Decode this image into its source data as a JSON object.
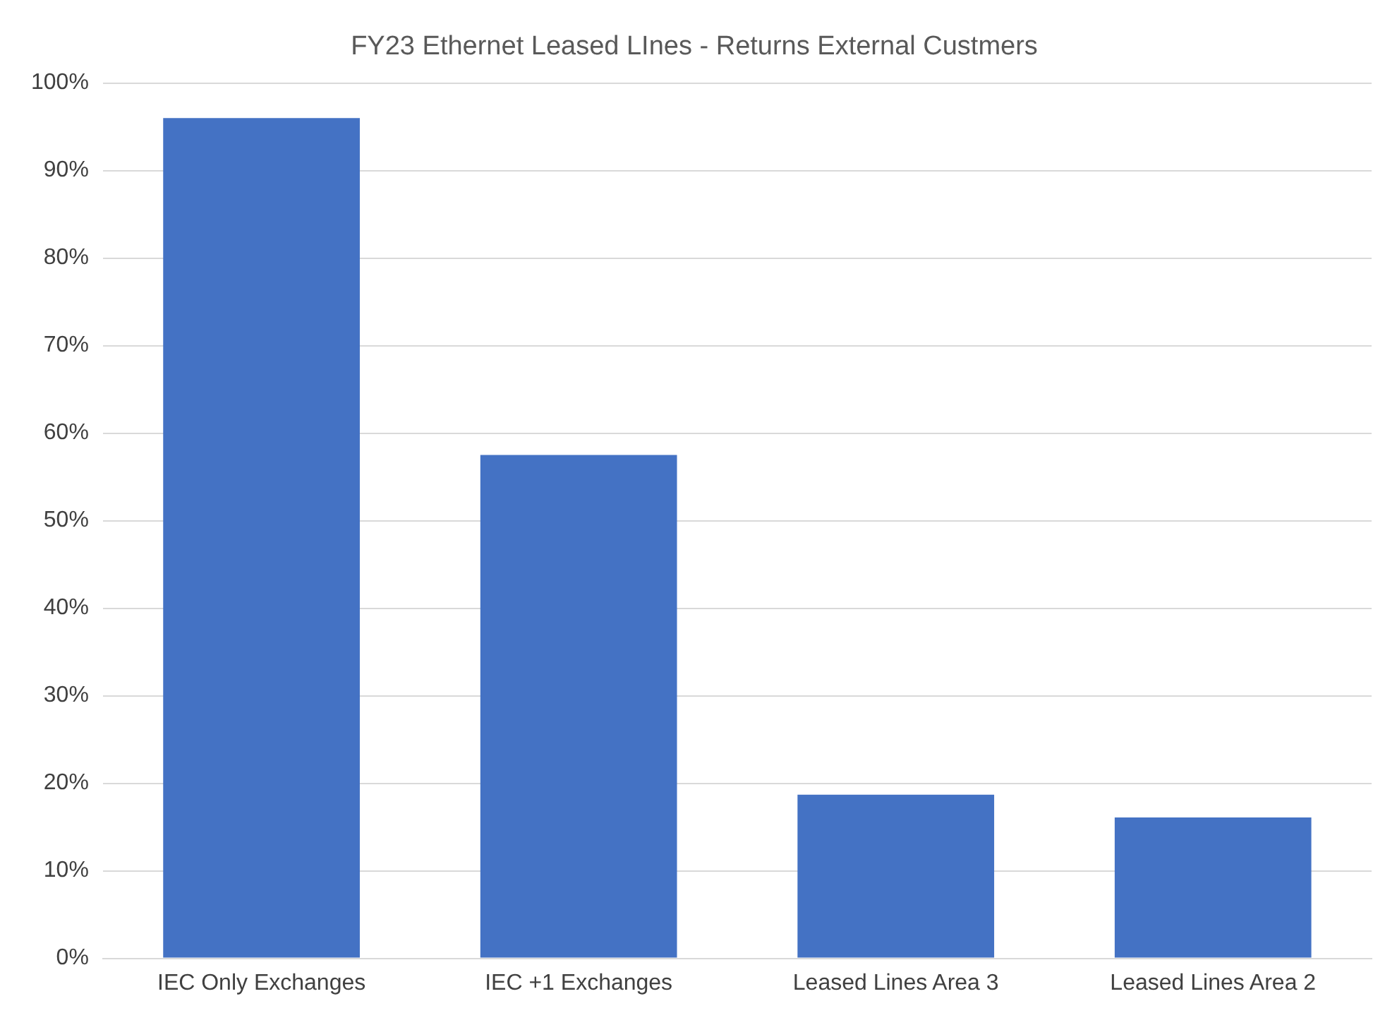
{
  "chart_data": {
    "type": "bar",
    "title": "FY23 Ethernet Leased LInes - Returns External Custmers",
    "categories": [
      "IEC Only Exchanges",
      "IEC +1 Exchanges",
      "Leased Lines Area 3",
      "Leased Lines Area 2"
    ],
    "values": [
      96,
      57.5,
      18.7,
      16.1
    ],
    "color": "#4472c4",
    "ylim": [
      0,
      100
    ],
    "yticks": [
      {
        "value": 0,
        "label": "0%"
      },
      {
        "value": 10,
        "label": "10%"
      },
      {
        "value": 20,
        "label": "20%"
      },
      {
        "value": 30,
        "label": "30%"
      },
      {
        "value": 40,
        "label": "40%"
      },
      {
        "value": 50,
        "label": "50%"
      },
      {
        "value": 60,
        "label": "60%"
      },
      {
        "value": 70,
        "label": "70%"
      },
      {
        "value": 80,
        "label": "80%"
      },
      {
        "value": 90,
        "label": "90%"
      },
      {
        "value": 100,
        "label": "100%"
      }
    ],
    "grid": "y"
  }
}
